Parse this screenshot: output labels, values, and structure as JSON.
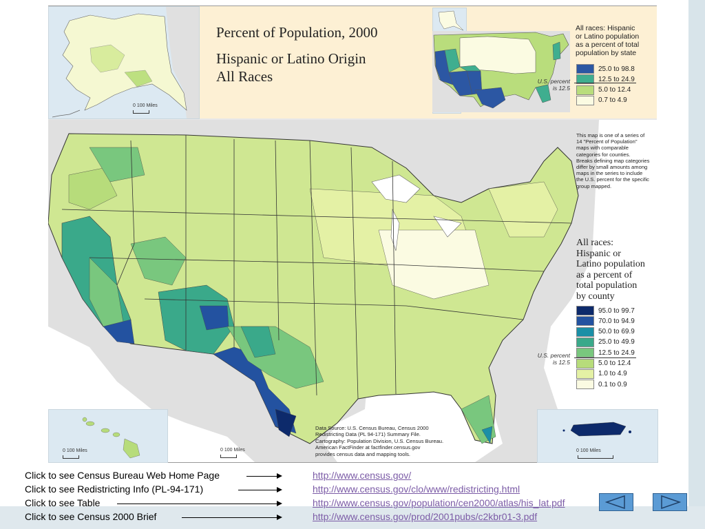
{
  "map": {
    "title": "Percent of Population, 2000",
    "subtitle_line1": "Hispanic or Latino Origin",
    "subtitle_line2": "All Races",
    "state_legend": {
      "heading": [
        "All races: Hispanic",
        "or Latino population",
        "as a percent of total",
        "population by state"
      ],
      "classes": [
        {
          "label": "25.0 to 98.8",
          "color": "#2c57a3"
        },
        {
          "label": "12.5 to 24.9",
          "color": "#3fae8f"
        },
        {
          "label": "5.0 to 12.4",
          "color": "#b9dd7c"
        },
        {
          "label": "0.7 to 4.9",
          "color": "#fbfbe2"
        }
      ],
      "us_percent": [
        "U.S. percent",
        "is 12.5"
      ]
    },
    "county_legend": {
      "heading": [
        "All races:",
        "Hispanic or",
        "Latino population",
        "as a percent of",
        "total population",
        "by county"
      ],
      "classes": [
        {
          "label": "95.0 to 99.7",
          "color": "#0d2a6b"
        },
        {
          "label": "70.0 to 94.9",
          "color": "#2352a0"
        },
        {
          "label": "50.0 to 69.9",
          "color": "#1b8fa6"
        },
        {
          "label": "25.0 to 49.9",
          "color": "#3aa98a"
        },
        {
          "label": "12.5 to 24.9",
          "color": "#79c77e"
        },
        {
          "label": "5.0 to 12.4",
          "color": "#b7dc7b"
        },
        {
          "label": "1.0 to 4.9",
          "color": "#e4f1a5"
        },
        {
          "label": "0.1 to 0.9",
          "color": "#fbfbe2"
        }
      ],
      "us_percent": [
        "U.S. percent",
        "is 12.5"
      ]
    },
    "note": [
      "This map is one of a series of",
      "14 \"Percent of Population\"",
      "maps with comparable",
      "categories for counties.",
      "Breaks defining map categories",
      "differ by small amounts among",
      "maps in the series to include",
      "the U.S. percent for the specific",
      "group mapped."
    ],
    "source": [
      "Data Source: U.S. Census Bureau, Census 2000",
      "Redistricting Data (PL 94-171) Summary File.",
      "Cartography: Population Division, U.S. Census Bureau.",
      "American FactFinder at factfinder.census.gov",
      "provides census data and mapping tools."
    ],
    "scale_label": "0   100 Miles",
    "colors": {
      "land_gray": "#e0e0e0",
      "water": "#dce9f2",
      "title_band": "#fdf0d4",
      "border": "#333333"
    }
  },
  "links": [
    {
      "label": "Click to see Census Bureau Web Home Page",
      "url": "http://www.census.gov/"
    },
    {
      "label": "Click to see Redistricting Info (PL-94-171)",
      "url": "http://www.census.gov/clo/www/redistricting.html"
    },
    {
      "label": "Click to see Table",
      "url": "http://www.census.gov/population/cen2000/atlas/his_lat.pdf"
    },
    {
      "label": "Click to see Census 2000 Brief",
      "url": "http://www.census.gov/prod/2001pubs/c2kbr01-3.pdf"
    }
  ],
  "nav": {
    "prev_icon": "triangle-left-icon",
    "next_icon": "triangle-right-icon",
    "button_color": "#5b9bd5"
  }
}
